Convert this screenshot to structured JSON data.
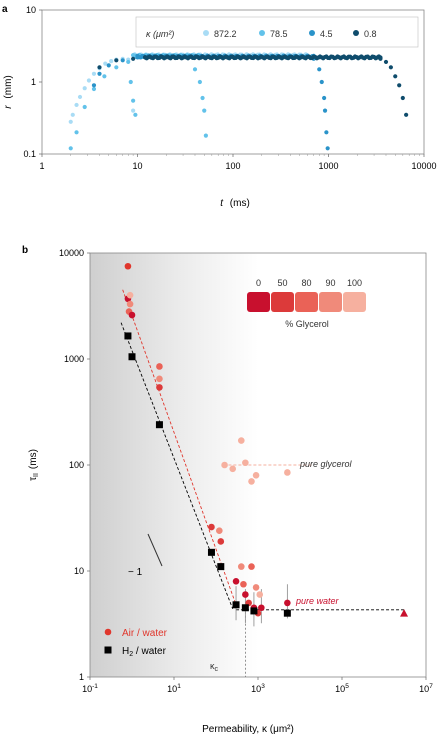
{
  "panel_a_label": "a",
  "panel_b_label": "b",
  "chart_data": [
    {
      "type": "scatter",
      "panel": "a",
      "xscale": "log",
      "yscale": "log",
      "xlim": [
        1,
        10000
      ],
      "ylim": [
        0.1,
        10
      ],
      "xticks": [
        "1",
        "10",
        "100",
        "1000",
        "10000"
      ],
      "yticks": [
        "0.1",
        "1",
        "10"
      ],
      "xlabel_sym": "t",
      "xlabel_unit": "(ms)",
      "ylabel_sym": "r",
      "ylabel_unit": "(mm)",
      "legend_title": "κ (μm²)",
      "legend_position": "top-right",
      "series": [
        {
          "name": "872.2",
          "color": "#a9dcf5",
          "x": [
            2.0,
            2.1,
            2.3,
            2.5,
            2.8,
            3.1,
            3.5,
            4.0,
            4.6,
            5.3,
            6.0,
            7.0,
            8.0,
            9.0
          ],
          "y": [
            0.28,
            0.35,
            0.48,
            0.62,
            0.82,
            1.05,
            1.3,
            1.55,
            1.8,
            1.95,
            2.05,
            2.1,
            2.05,
            0.4
          ],
          "plateau": [
            9.0,
            600,
            2.35
          ]
        },
        {
          "name": "78.5",
          "color": "#62c2ea",
          "x": [
            2.0,
            2.3,
            2.8,
            3.5,
            4.5,
            6.0,
            8.0,
            8.5,
            9.0,
            9.5,
            20,
            30,
            40,
            45,
            48,
            50,
            52
          ],
          "y": [
            0.12,
            0.2,
            0.45,
            0.8,
            1.2,
            1.6,
            1.9,
            1.0,
            0.55,
            0.35,
            2.25,
            2.2,
            1.5,
            1.0,
            0.6,
            0.4,
            0.18
          ],
          "plateau": [
            9,
            45,
            2.3
          ]
        },
        {
          "name": "4.5",
          "color": "#2a93c9",
          "x": [
            3.5,
            4.0,
            5.0,
            7.0,
            10,
            700,
            800,
            850,
            900,
            920,
            950,
            980
          ],
          "y": [
            0.9,
            1.3,
            1.7,
            2.0,
            2.2,
            2.1,
            1.5,
            1.0,
            0.6,
            0.4,
            0.2,
            0.12
          ],
          "plateau": [
            10,
            700,
            2.25
          ]
        },
        {
          "name": "0.8",
          "color": "#0f4c6c",
          "x": [
            4.0,
            6.0,
            9.0,
            12,
            3500,
            4000,
            4500,
            5000,
            5500,
            6000,
            6500
          ],
          "y": [
            1.6,
            2.0,
            2.1,
            2.2,
            2.1,
            1.9,
            1.6,
            1.2,
            0.9,
            0.6,
            0.35
          ],
          "plateau": [
            12,
            3500,
            2.2
          ]
        }
      ]
    },
    {
      "type": "scatter",
      "panel": "b",
      "xscale": "log",
      "yscale": "log",
      "xlim": [
        0.1,
        10000000
      ],
      "ylim": [
        1,
        10000
      ],
      "xtick_labels": [
        {
          "base": "10",
          "exp": "-1",
          "v": 0.1
        },
        {
          "base": "10",
          "exp": "1",
          "v": 10
        },
        {
          "base": "10",
          "exp": "3",
          "v": 1000
        },
        {
          "base": "10",
          "exp": "5",
          "v": 100000
        },
        {
          "base": "10",
          "exp": "7",
          "v": 10000000
        }
      ],
      "yticks": [
        "1",
        "10",
        "100",
        "1000",
        "10000"
      ],
      "ylabel": "τ",
      "ylabel_sub": "II",
      "ylabel_unit": "(ms)",
      "xlabel": "Permeability, κ (μm²)",
      "glycerol_legend_title": "% Glycerol",
      "glycerol_levels": [
        {
          "label": "0",
          "color": "#c8102e"
        },
        {
          "label": "50",
          "color": "#dc3a3a"
        },
        {
          "label": "80",
          "color": "#ea6257"
        },
        {
          "label": "90",
          "color": "#f08a7a"
        },
        {
          "label": "100",
          "color": "#f6b09f"
        }
      ],
      "legend_air": "Air / water",
      "legend_h2_prefix": "H",
      "legend_h2_sub": "2",
      "legend_h2_suffix": " / water",
      "annotation_glycerol": "pure glycerol",
      "annotation_water": "pure water",
      "annotation_kc": "κ",
      "annotation_kc_sub": "c",
      "annotation_slope": "− 1",
      "kc_value": 500,
      "air_water": {
        "color": "#e0362c",
        "points": [
          {
            "x": 0.8,
            "y": 7500,
            "c": "#e0362c"
          },
          {
            "x": 0.8,
            "y": 3700,
            "c": "#c8102e"
          },
          {
            "x": 0.9,
            "y": 4000,
            "c": "#f6b09f"
          },
          {
            "x": 0.9,
            "y": 3300,
            "c": "#f08a7a"
          },
          {
            "x": 0.85,
            "y": 2800,
            "c": "#ea6257"
          },
          {
            "x": 1.0,
            "y": 2600,
            "c": "#c8102e"
          },
          {
            "x": 4.5,
            "y": 850,
            "c": "#ea6257"
          },
          {
            "x": 4.5,
            "y": 650,
            "c": "#f08a7a"
          },
          {
            "x": 4.5,
            "y": 540,
            "c": "#dc3a3a"
          },
          {
            "x": 78,
            "y": 26,
            "c": "#dc3a3a"
          },
          {
            "x": 120,
            "y": 24,
            "c": "#f08a7a"
          },
          {
            "x": 130,
            "y": 19,
            "c": "#dc3a3a"
          },
          {
            "x": 300,
            "y": 8,
            "c": "#c8102e"
          },
          {
            "x": 400,
            "y": 11,
            "c": "#f08a7a"
          },
          {
            "x": 450,
            "y": 7.5,
            "c": "#ea6257"
          },
          {
            "x": 500,
            "y": 6,
            "c": "#c8102e"
          },
          {
            "x": 600,
            "y": 5,
            "c": "#dc3a3a"
          },
          {
            "x": 700,
            "y": 11,
            "c": "#ea6257"
          },
          {
            "x": 800,
            "y": 4.5,
            "c": "#c8102e"
          },
          {
            "x": 900,
            "y": 7,
            "c": "#f08a7a"
          },
          {
            "x": 1100,
            "y": 6,
            "c": "#f6b09f"
          },
          {
            "x": 1200,
            "y": 4.5,
            "c": "#c8102e"
          },
          {
            "x": 5000,
            "y": 5,
            "c": "#c8102e"
          },
          {
            "x": 1000,
            "y": 4,
            "c": "#dc3a3a"
          },
          {
            "x": 160,
            "y": 100,
            "c": "#f6b09f"
          },
          {
            "x": 250,
            "y": 92,
            "c": "#f6b09f"
          },
          {
            "x": 400,
            "y": 170,
            "c": "#f6b09f"
          },
          {
            "x": 500,
            "y": 105,
            "c": "#f6b09f"
          },
          {
            "x": 700,
            "y": 70,
            "c": "#f6b09f"
          },
          {
            "x": 900,
            "y": 80,
            "c": "#f6b09f"
          },
          {
            "x": 5000,
            "y": 85,
            "c": "#f6b09f"
          }
        ],
        "triangle": {
          "x": 3000000,
          "y": 4,
          "c": "#c8102e"
        }
      },
      "h2_water": {
        "color": "#000000",
        "x": [
          0.8,
          1.0,
          4.5,
          78,
          130,
          300,
          500,
          800,
          5000
        ],
        "y": [
          1650,
          1050,
          240,
          15,
          11,
          4.8,
          4.5,
          4.2,
          4.0
        ]
      }
    }
  ]
}
